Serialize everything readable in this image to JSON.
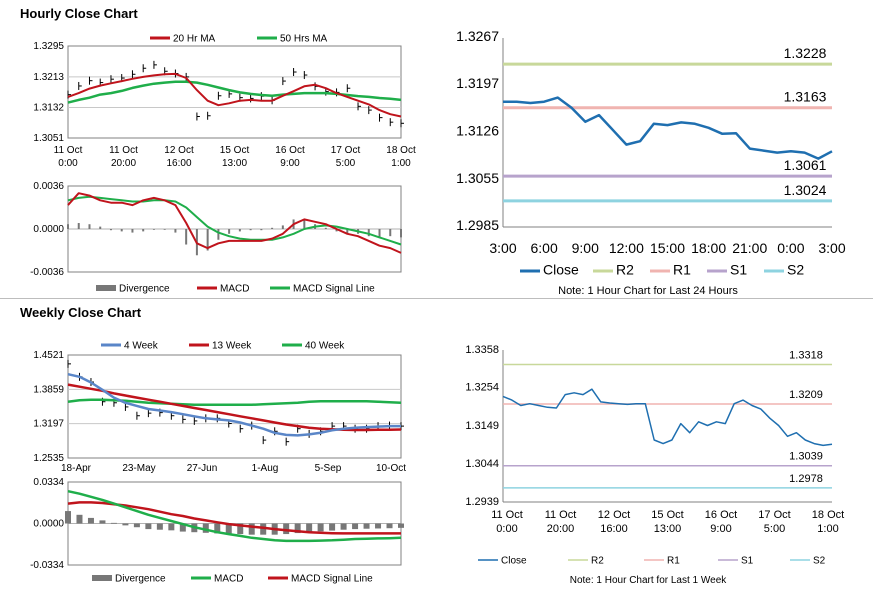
{
  "titles": {
    "hourly": "Hourly Close Chart",
    "weekly": "Weekly Close Chart"
  },
  "colors": {
    "red": "#c0141c",
    "green": "#1fae4a",
    "blue": "#5a86c8",
    "close": "#1f6fb0",
    "r2": "#c8d89a",
    "r1": "#f0b4b0",
    "s1": "#b7a3cc",
    "s2": "#8ed3e0",
    "bar": "#777777"
  },
  "chart_data": [
    {
      "id": "hourly_price",
      "type": "line",
      "legend": [
        "20 Hr MA",
        "50 Hrs MA"
      ],
      "yticks": [
        "1.3295",
        "1.3213",
        "1.3132",
        "1.3051"
      ],
      "ylim": [
        1.3051,
        1.3295
      ],
      "xticks": [
        [
          "11 Oct",
          "0:00"
        ],
        [
          "11 Oct",
          "20:00"
        ],
        [
          "12 Oct",
          "16:00"
        ],
        [
          "15 Oct",
          "13:00"
        ],
        [
          "16 Oct",
          "9:00"
        ],
        [
          "17 Oct",
          "5:00"
        ],
        [
          "18 Oct",
          "1:00"
        ]
      ],
      "series": [
        {
          "name": "Close",
          "values": [
            1.3166,
            1.3189,
            1.3203,
            1.3198,
            1.3207,
            1.321,
            1.322,
            1.3236,
            1.3245,
            1.3228,
            1.3222,
            1.3213,
            1.3108,
            1.311,
            1.3163,
            1.3168,
            1.3158,
            1.3156,
            1.3162,
            1.3151,
            1.3202,
            1.3226,
            1.3218,
            1.3188,
            1.3174,
            1.3172,
            1.3183,
            1.3135,
            1.3125,
            1.3105,
            1.3093,
            1.309
          ]
        },
        {
          "name": "20 Hr MA",
          "values": [
            1.316,
            1.317,
            1.3182,
            1.319,
            1.3196,
            1.3202,
            1.3208,
            1.3213,
            1.3217,
            1.322,
            1.3221,
            1.321,
            1.3178,
            1.315,
            1.3138,
            1.3143,
            1.315,
            1.3152,
            1.315,
            1.315,
            1.3163,
            1.3175,
            1.3188,
            1.3192,
            1.3183,
            1.317,
            1.316,
            1.315,
            1.314,
            1.3125,
            1.3114,
            1.3108
          ]
        },
        {
          "name": "50 Hrs MA",
          "values": [
            1.3145,
            1.3152,
            1.3158,
            1.3166,
            1.317,
            1.3176,
            1.3184,
            1.319,
            1.3195,
            1.3198,
            1.32,
            1.32,
            1.3198,
            1.3192,
            1.3185,
            1.3178,
            1.3172,
            1.3168,
            1.3165,
            1.3163,
            1.3166,
            1.3168,
            1.317,
            1.317,
            1.317,
            1.3168,
            1.3165,
            1.3162,
            1.316,
            1.3157,
            1.3155,
            1.3152
          ]
        }
      ]
    },
    {
      "id": "hourly_macd",
      "type": "line",
      "legend": [
        "Divergence",
        "MACD",
        "MACD Signal Line"
      ],
      "yticks": [
        "0.0036",
        "0.0000",
        "-0.0036"
      ],
      "ylim": [
        -0.0036,
        0.0036
      ],
      "series": [
        {
          "name": "MACD",
          "values": [
            0.002,
            0.003,
            0.0028,
            0.0024,
            0.0022,
            0.0022,
            0.002,
            0.0024,
            0.0026,
            0.0024,
            0.002,
            0.0005,
            -0.0012,
            -0.0016,
            -0.0012,
            -0.001,
            -0.001,
            -0.001,
            -0.001,
            -0.0008,
            -0.0004,
            0.0004,
            0.0008,
            0.0006,
            0.0004,
            0.0,
            -0.0004,
            -0.0006,
            -0.001,
            -0.0014,
            -0.0016,
            -0.002
          ]
        },
        {
          "name": "MACD Signal Line",
          "values": [
            0.0024,
            0.0026,
            0.0027,
            0.0026,
            0.0025,
            0.0024,
            0.0023,
            0.0023,
            0.0024,
            0.0024,
            0.0023,
            0.0018,
            0.001,
            0.0002,
            -0.0003,
            -0.0006,
            -0.0008,
            -0.0009,
            -0.0009,
            -0.0009,
            -0.0007,
            -0.0004,
            0.0,
            0.0002,
            0.0003,
            0.0002,
            0.0,
            -0.0002,
            -0.0004,
            -0.0007,
            -0.001,
            -0.0013
          ]
        },
        {
          "name": "Divergence",
          "values": [
            0.0004,
            0.0005,
            0.0004,
            0.0002,
            -0.0001,
            -0.0002,
            -0.0003,
            -0.0002,
            0.0,
            0.0,
            -0.0003,
            -0.0013,
            -0.0022,
            -0.0018,
            -0.0009,
            -0.0004,
            -0.0002,
            -0.0001,
            -0.0001,
            0.0001,
            0.0003,
            0.0008,
            0.0008,
            0.0004,
            0.0001,
            -0.0002,
            -0.0004,
            -0.0004,
            -0.0006,
            -0.0007,
            -0.0006,
            -0.0007
          ]
        }
      ]
    },
    {
      "id": "hourly_24h",
      "type": "line",
      "note": "Note: 1 Hour Chart for Last 24 Hours",
      "legend": [
        "Close",
        "R2",
        "R1",
        "S1",
        "S2"
      ],
      "yticks": [
        "1.3267",
        "1.3197",
        "1.3126",
        "1.3055",
        "1.2985"
      ],
      "ylim": [
        1.2985,
        1.3267
      ],
      "xticks": [
        "3:00",
        "6:00",
        "9:00",
        "12:00",
        "15:00",
        "18:00",
        "21:00",
        "0:00",
        "3:00"
      ],
      "levels": [
        {
          "name": "R2",
          "value": 1.3228,
          "label": "1.3228"
        },
        {
          "name": "R1",
          "value": 1.3163,
          "label": "1.3163"
        },
        {
          "name": "S1",
          "value": 1.3061,
          "label": "1.3061"
        },
        {
          "name": "S2",
          "value": 1.3024,
          "label": "1.3024"
        }
      ],
      "close": [
        1.3172,
        1.3172,
        1.317,
        1.3172,
        1.3178,
        1.3163,
        1.3142,
        1.3152,
        1.313,
        1.3108,
        1.3113,
        1.3139,
        1.3137,
        1.3141,
        1.3139,
        1.3133,
        1.3124,
        1.3125,
        1.3102,
        1.3099,
        1.3096,
        1.3098,
        1.3096,
        1.3087,
        1.3098
      ]
    },
    {
      "id": "weekly_price",
      "type": "line",
      "legend": [
        "4 Week",
        "13 Week",
        "40 Week"
      ],
      "yticks": [
        "1.4521",
        "1.3859",
        "1.3197",
        "1.2535"
      ],
      "ylim": [
        1.2535,
        1.4521
      ],
      "xticks": [
        "18-Apr",
        "23-May",
        "27-Jun",
        "1-Aug",
        "5-Sep",
        "10-Oct"
      ],
      "series": [
        {
          "name": "Close",
          "values": [
            1.435,
            1.41,
            1.4,
            1.362,
            1.36,
            1.352,
            1.335,
            1.34,
            1.341,
            1.335,
            1.328,
            1.325,
            1.33,
            1.33,
            1.32,
            1.31,
            1.316,
            1.288,
            1.305,
            1.285,
            1.31,
            1.3,
            1.305,
            1.315,
            1.315,
            1.31,
            1.31,
            1.315,
            1.316,
            1.315
          ]
        },
        {
          "name": "4 Week",
          "values": [
            1.415,
            1.41,
            1.399,
            1.385,
            1.37,
            1.36,
            1.354,
            1.348,
            1.345,
            1.342,
            1.338,
            1.334,
            1.33,
            1.328,
            1.326,
            1.322,
            1.316,
            1.31,
            1.302,
            1.298,
            1.297,
            1.299,
            1.302,
            1.307,
            1.31,
            1.312,
            1.313,
            1.314,
            1.315,
            1.315
          ]
        },
        {
          "name": "13 Week",
          "values": [
            1.395,
            1.391,
            1.387,
            1.383,
            1.378,
            1.374,
            1.37,
            1.366,
            1.362,
            1.358,
            1.354,
            1.35,
            1.346,
            1.342,
            1.338,
            1.334,
            1.33,
            1.326,
            1.322,
            1.318,
            1.315,
            1.312,
            1.31,
            1.309,
            1.308,
            1.3075,
            1.3075,
            1.308,
            1.308,
            1.3085
          ]
        },
        {
          "name": "40 Week",
          "values": [
            1.362,
            1.365,
            1.366,
            1.366,
            1.365,
            1.364,
            1.362,
            1.36,
            1.359,
            1.358,
            1.357,
            1.356,
            1.356,
            1.356,
            1.356,
            1.356,
            1.356,
            1.357,
            1.358,
            1.359,
            1.36,
            1.362,
            1.363,
            1.363,
            1.363,
            1.363,
            1.363,
            1.362,
            1.361,
            1.36
          ]
        }
      ]
    },
    {
      "id": "weekly_macd",
      "type": "line",
      "legend": [
        "Divergence",
        "MACD",
        "MACD Signal Line"
      ],
      "yticks": [
        "0.0334",
        "0.0000",
        "-0.0334"
      ],
      "ylim": [
        -0.0334,
        0.0334
      ],
      "series": [
        {
          "name": "MACD",
          "values": [
            0.026,
            0.024,
            0.0215,
            0.019,
            0.016,
            0.013,
            0.01,
            0.007,
            0.0045,
            0.002,
            -0.0005,
            -0.003,
            -0.005,
            -0.007,
            -0.0085,
            -0.01,
            -0.0115,
            -0.0125,
            -0.0135,
            -0.014,
            -0.014,
            -0.014,
            -0.0138,
            -0.0135,
            -0.013,
            -0.0125,
            -0.0122,
            -0.012,
            -0.0118,
            -0.0115
          ]
        },
        {
          "name": "MACD Signal Line",
          "values": [
            0.016,
            0.017,
            0.017,
            0.0165,
            0.0155,
            0.0145,
            0.013,
            0.0115,
            0.0095,
            0.0075,
            0.006,
            0.004,
            0.0025,
            0.001,
            -0.0005,
            -0.0015,
            -0.0025,
            -0.0035,
            -0.0045,
            -0.0055,
            -0.0063,
            -0.007,
            -0.0075,
            -0.0078,
            -0.008,
            -0.008,
            -0.008,
            -0.008,
            -0.008,
            -0.008
          ]
        },
        {
          "name": "Divergence",
          "values": [
            0.01,
            0.007,
            0.0045,
            0.0025,
            0.0005,
            -0.0015,
            -0.003,
            -0.0045,
            -0.005,
            -0.0055,
            -0.0065,
            -0.007,
            -0.0075,
            -0.008,
            -0.008,
            -0.0085,
            -0.009,
            -0.009,
            -0.009,
            -0.0085,
            -0.0077,
            -0.007,
            -0.0063,
            -0.0057,
            -0.005,
            -0.0045,
            -0.0042,
            -0.004,
            -0.0038,
            -0.0035
          ]
        }
      ]
    },
    {
      "id": "weekly_1w",
      "type": "line",
      "note": "Note: 1 Hour Chart for Last 1 Week",
      "legend": [
        "Close",
        "R2",
        "R1",
        "S1",
        "S2"
      ],
      "yticks": [
        "1.3358",
        "1.3254",
        "1.3149",
        "1.3044",
        "1.2939"
      ],
      "ylim": [
        1.2939,
        1.3358
      ],
      "xticks": [
        [
          "11 Oct",
          "0:00"
        ],
        [
          "11 Oct",
          "20:00"
        ],
        [
          "12 Oct",
          "16:00"
        ],
        [
          "15 Oct",
          "13:00"
        ],
        [
          "16 Oct",
          "9:00"
        ],
        [
          "17 Oct",
          "5:00"
        ],
        [
          "18 Oct",
          "1:00"
        ]
      ],
      "levels": [
        {
          "name": "R2",
          "value": 1.3318,
          "label": "1.3318"
        },
        {
          "name": "R1",
          "value": 1.3209,
          "label": "1.3209"
        },
        {
          "name": "S1",
          "value": 1.3039,
          "label": "1.3039"
        },
        {
          "name": "S2",
          "value": 1.2978,
          "label": "1.2978"
        }
      ],
      "close": [
        1.323,
        1.322,
        1.3205,
        1.321,
        1.3205,
        1.32,
        1.3198,
        1.3235,
        1.324,
        1.3235,
        1.325,
        1.3215,
        1.3212,
        1.321,
        1.3208,
        1.321,
        1.321,
        1.311,
        1.31,
        1.311,
        1.3155,
        1.313,
        1.316,
        1.315,
        1.316,
        1.3155,
        1.321,
        1.322,
        1.3205,
        1.3195,
        1.317,
        1.315,
        1.312,
        1.313,
        1.311,
        1.31,
        1.3095,
        1.3098
      ]
    }
  ]
}
